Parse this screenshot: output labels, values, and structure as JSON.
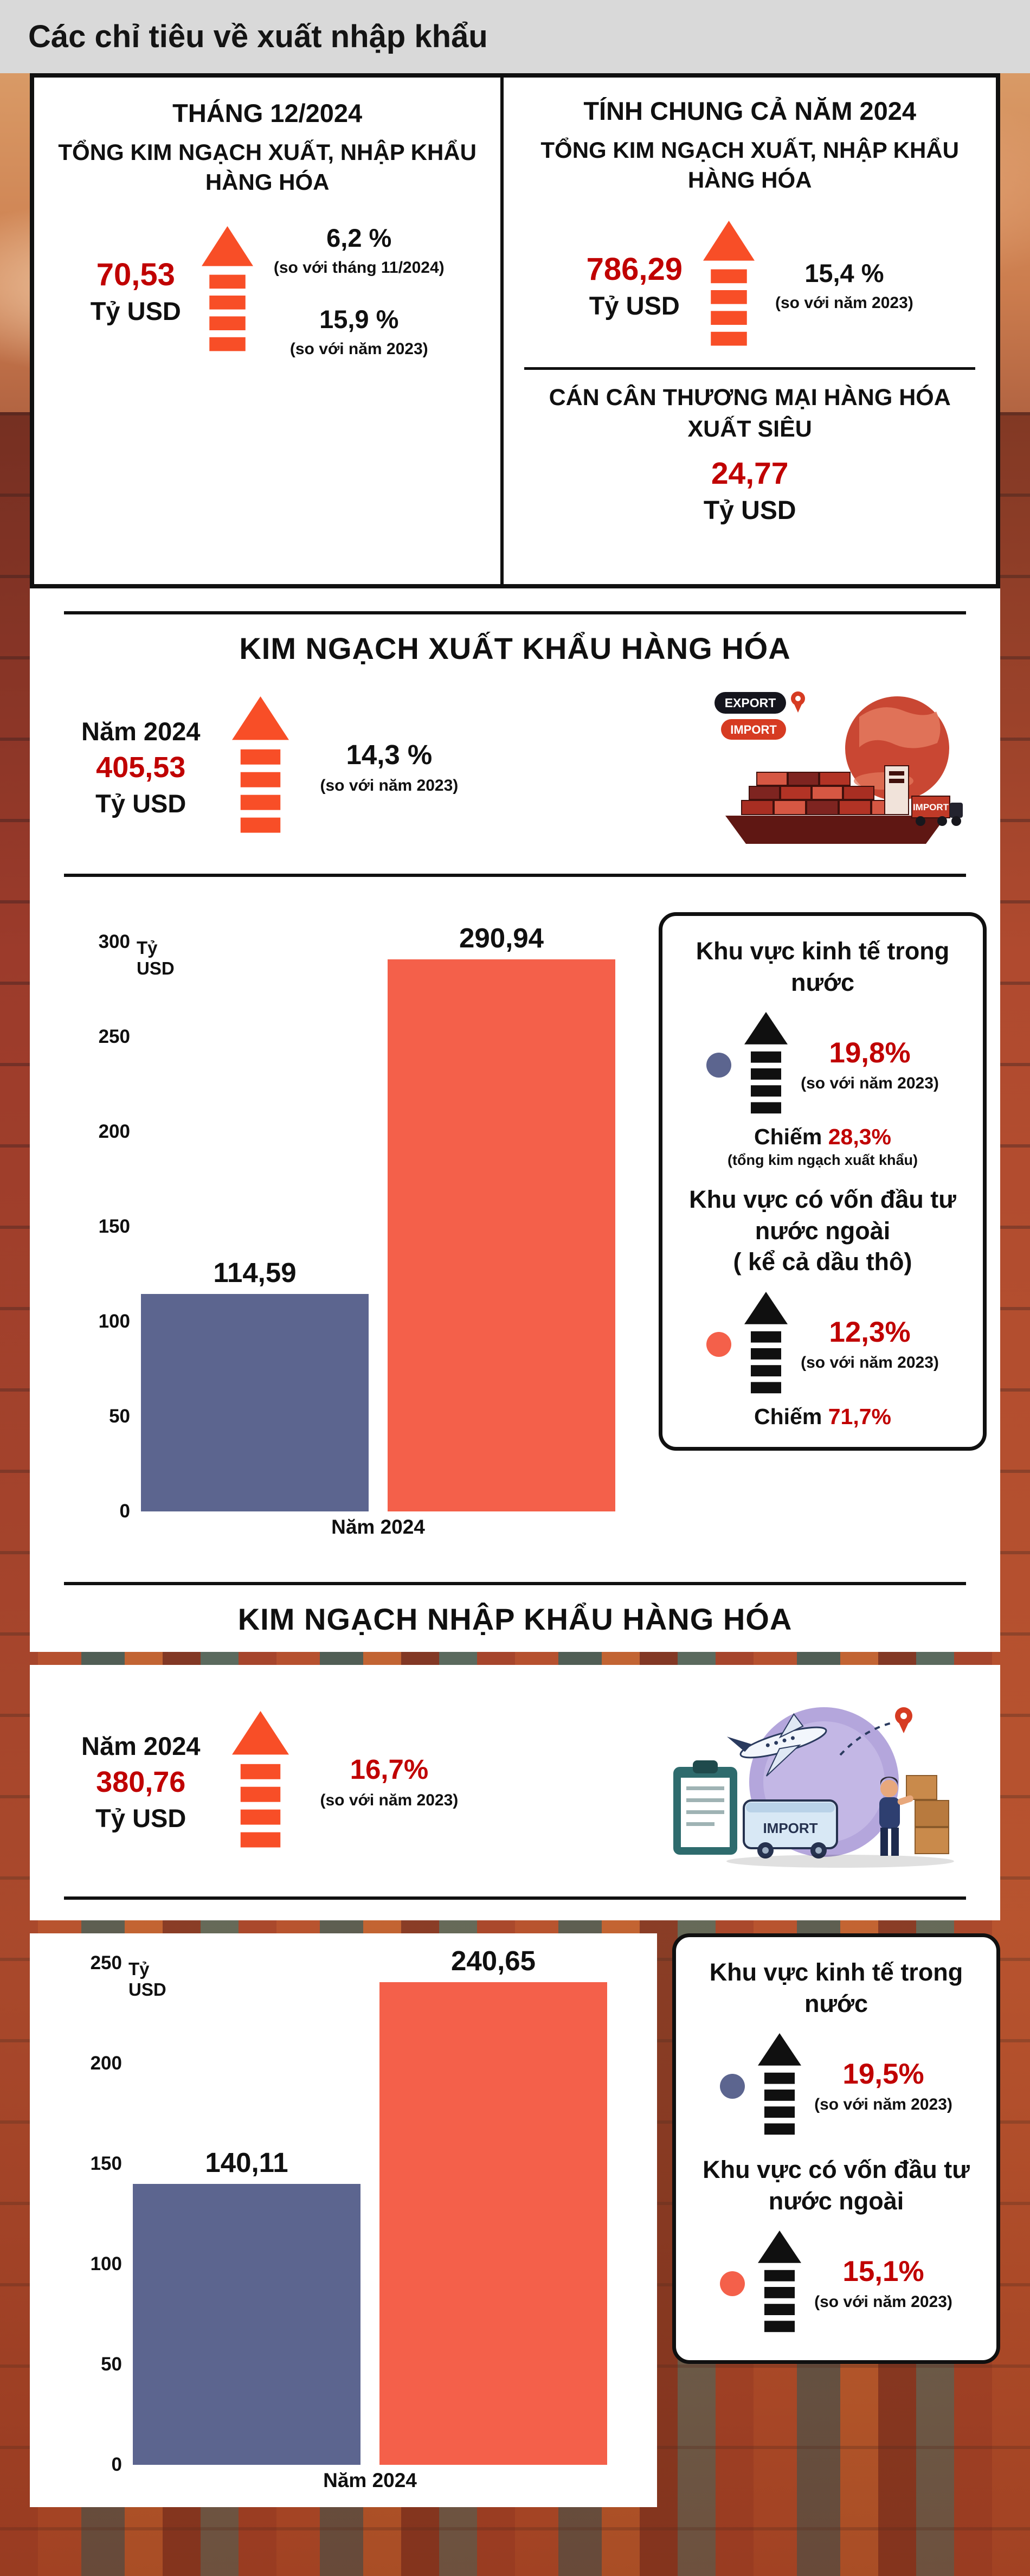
{
  "page": {
    "title": "Các chỉ tiêu về xuất nhập khẩu"
  },
  "summary": {
    "month": {
      "title": "THÁNG 12/2024",
      "subtitle": "TỔNG KIM NGẠCH XUẤT, NHẬP KHẨU HÀNG HÓA",
      "value": "70,53",
      "unit": "Tỷ USD",
      "deltas": [
        {
          "pct": "6,2 %",
          "note": "(so với tháng 11/2024)"
        },
        {
          "pct": "15,9 %",
          "note": "(so với năm 2023)"
        }
      ]
    },
    "year": {
      "title": "TÍNH CHUNG CẢ NĂM 2024",
      "subtitle": "TỔNG KIM NGẠCH XUẤT, NHẬP KHẨU HÀNG HÓA",
      "value": "786,29",
      "unit": "Tỷ USD",
      "delta": {
        "pct": "15,4 %",
        "note": "(so với năm 2023)"
      },
      "balance_title": "CÁN CÂN THƯƠNG MẠI HÀNG HÓA XUẤT SIÊU",
      "balance_value": "24,77",
      "balance_unit": "Tỷ USD"
    }
  },
  "export_section": {
    "heading": "KIM NGẠCH XUẤT KHẨU HÀNG HÓA",
    "year_label": "Năm 2024",
    "value": "405,53",
    "unit": "Tỷ USD",
    "delta": {
      "pct": "14,3 %",
      "note": "(so với năm 2023)"
    },
    "illustration": {
      "badge_export": "EXPORT",
      "badge_import": "IMPORT",
      "truck_label": "IMPORT"
    },
    "panel": {
      "item1": {
        "title": "Khu vực kinh tế trong nước",
        "pct": "19,8%",
        "note": "(so với năm 2023)",
        "share_label": "Chiếm",
        "share_value": "28,3%",
        "share_note": "(tổng kim ngạch xuất khẩu)"
      },
      "item2": {
        "title": "Khu vực có vốn đầu tư nước ngoài",
        "subtitle": "( kể cả dầu thô)",
        "pct": "12,3%",
        "note": "(so với năm 2023)",
        "share_label": "Chiếm",
        "share_value": "71,7%"
      }
    }
  },
  "import_section": {
    "heading": "KIM NGẠCH NHẬP KHẨU HÀNG HÓA",
    "year_label": "Năm 2024",
    "value": "380,76",
    "unit": "Tỷ USD",
    "delta": {
      "pct": "16,7%",
      "note": "(so với năm 2023)"
    },
    "illustration": {
      "truck_label": "IMPORT"
    },
    "panel": {
      "item1": {
        "title": "Khu vực kinh tế trong nước",
        "pct": "19,5%",
        "note": "(so với năm 2023)"
      },
      "item2": {
        "title": "Khu vực có vốn đầu tư nước ngoài",
        "pct": "15,1%",
        "note": "(so với năm 2023)"
      }
    }
  },
  "chart_data": [
    {
      "type": "bar",
      "title": "KIM NGẠCH XUẤT KHẨU HÀNG HÓA - Năm 2024",
      "categories": [
        "Khu vực kinh tế trong nước",
        "Khu vực có vốn đầu tư nước ngoài ( kể cả dầu thô)"
      ],
      "values": [
        114.59,
        290.94
      ],
      "value_labels": [
        "114,59",
        "290,94"
      ],
      "bar_colors": [
        "#5c658f",
        "#f4604a"
      ],
      "xlabel": "Năm 2024",
      "ylabel": "Tỷ USD",
      "ylim": [
        0,
        300
      ],
      "ytick_step": 50,
      "grid": false,
      "legend": "none"
    },
    {
      "type": "bar",
      "title": "KIM NGẠCH NHẬP KHẨU HÀNG HÓA - Năm 2024",
      "categories": [
        "Khu vực kinh tế trong nước",
        "Khu vực có vốn đầu tư nước ngoài"
      ],
      "values": [
        140.11,
        240.65
      ],
      "value_labels": [
        "140,11",
        "240,65"
      ],
      "bar_colors": [
        "#5c658f",
        "#f4604a"
      ],
      "xlabel": "Năm 2024",
      "ylabel": "Tỷ USD",
      "ylim": [
        0,
        250
      ],
      "ytick_step": 50,
      "grid": false,
      "legend": "none"
    }
  ]
}
